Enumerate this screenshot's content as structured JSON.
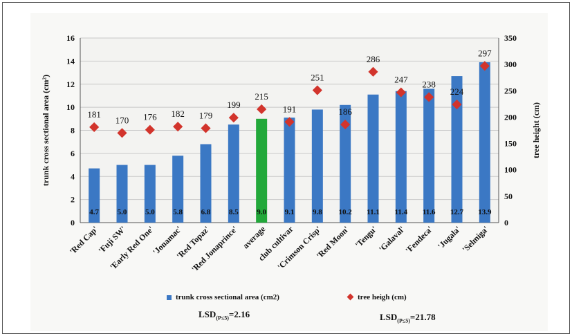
{
  "chart_data": {
    "type": "bar+scatter",
    "categories": [
      "'Red Cap'",
      "'Fuji SW'",
      "'Early Red One'",
      "'Jonamac'",
      "'Red Topaz'",
      "'Red Jonaprince'",
      "average",
      "club cultivar",
      "'Crimson Crisp'",
      "'Red Moon'",
      "'Tengu'",
      "'Galaval'",
      "'Fendeca'",
      "'Jugala'",
      "'Selmiga'"
    ],
    "highlight_index": 6,
    "series": [
      {
        "name": "trunk cross sectional area (cm2)",
        "type": "bar",
        "axis": "left",
        "values": [
          4.7,
          5.0,
          5.0,
          5.8,
          6.8,
          8.5,
          9.0,
          9.1,
          9.8,
          10.2,
          11.1,
          11.4,
          11.6,
          12.7,
          13.9
        ],
        "labels": [
          "4.7",
          "5.0",
          "5.0",
          "5.8",
          "6.8",
          "8.5",
          "9.0",
          "9.1",
          "9.8",
          "10.2",
          "11.1",
          "11.4",
          "11.6",
          "12.7",
          "13.9"
        ]
      },
      {
        "name": "tree heigh (cm)",
        "type": "scatter",
        "axis": "right",
        "values": [
          181,
          170,
          176,
          182,
          179,
          199,
          215,
          191,
          251,
          186,
          286,
          247,
          238,
          224,
          297
        ],
        "labels": [
          "181",
          "170",
          "176",
          "182",
          "179",
          "199",
          "215",
          "191",
          "251",
          "186",
          "286",
          "247",
          "238",
          "224",
          "297"
        ]
      }
    ],
    "ylabel": "trunk cross sectional area (cm²)",
    "y2label": "tree height (cm)",
    "ylim": [
      0,
      16
    ],
    "y_ticks": [
      0,
      2,
      4,
      6,
      8,
      10,
      12,
      14,
      16
    ],
    "y2lim": [
      0,
      350
    ],
    "y2_ticks": [
      0,
      50,
      100,
      150,
      200,
      250,
      300,
      350
    ],
    "grid": true,
    "legend_position": "bottom",
    "annotations": {
      "lsd_left_main": "LSD",
      "lsd_left_sub": "(P≤5)",
      "lsd_left_value": "=2.16",
      "lsd_right_main": "LSD",
      "lsd_right_sub": "(P≤5)",
      "lsd_right_value": "=21.78"
    },
    "colors": {
      "bar": "#3b78c4",
      "bar_highlight": "#22a83a",
      "marker": "#d2342c",
      "grid": "#c8c8c8",
      "axis": "#555555",
      "text": "#111111"
    }
  }
}
